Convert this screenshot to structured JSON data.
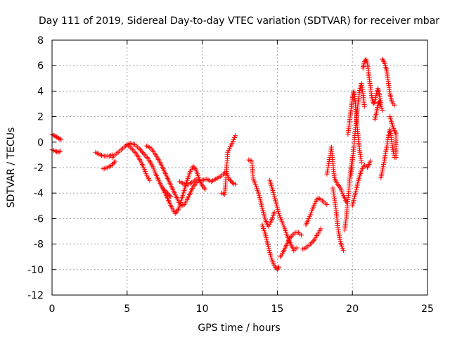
{
  "chart_data": {
    "type": "scatter",
    "title": "Day 111 of 2019, Sidereal Day-to-day VTEC variation (SDTVAR) for receiver mbar",
    "xlabel": "GPS time / hours",
    "ylabel": "SDTVAR / TECUs",
    "xlim": [
      0,
      25
    ],
    "ylim": [
      -12,
      8
    ],
    "xticks": [
      "0",
      "5",
      "10",
      "15",
      "20",
      "25"
    ],
    "yticks": [
      "-12",
      "-10",
      "-8",
      "-6",
      "-4",
      "-2",
      "0",
      "2",
      "4",
      "6",
      "8"
    ],
    "grid": true,
    "marker": "plus",
    "color": "#ff0000",
    "segments": [
      [
        [
          0.0,
          0.6
        ],
        [
          0.15,
          0.5
        ],
        [
          0.3,
          0.4
        ],
        [
          0.45,
          0.3
        ],
        [
          0.6,
          0.2
        ]
      ],
      [
        [
          0.0,
          -0.6
        ],
        [
          0.2,
          -0.7
        ],
        [
          0.4,
          -0.8
        ],
        [
          0.55,
          -0.7
        ]
      ],
      [
        [
          2.9,
          -0.8
        ],
        [
          3.2,
          -1.0
        ],
        [
          3.5,
          -1.1
        ],
        [
          3.8,
          -1.1
        ],
        [
          4.0,
          -1.0
        ]
      ],
      [
        [
          3.4,
          -2.1
        ],
        [
          3.7,
          -2.0
        ],
        [
          4.0,
          -1.8
        ],
        [
          4.2,
          -1.5
        ]
      ],
      [
        [
          4.0,
          -1.2
        ],
        [
          4.3,
          -0.9
        ],
        [
          4.6,
          -0.6
        ],
        [
          4.9,
          -0.3
        ],
        [
          5.2,
          -0.1
        ],
        [
          5.5,
          -0.2
        ],
        [
          5.8,
          -0.5
        ],
        [
          6.1,
          -0.9
        ],
        [
          6.4,
          -1.3
        ],
        [
          6.7,
          -1.9
        ],
        [
          6.9,
          -2.5
        ],
        [
          7.1,
          -3.0
        ],
        [
          7.3,
          -3.5
        ],
        [
          7.5,
          -3.8
        ],
        [
          7.7,
          -4.0
        ],
        [
          7.9,
          -4.3
        ]
      ],
      [
        [
          5.0,
          -0.2
        ],
        [
          5.3,
          -0.5
        ],
        [
          5.6,
          -0.9
        ],
        [
          5.9,
          -1.5
        ],
        [
          6.1,
          -2.0
        ],
        [
          6.3,
          -2.6
        ],
        [
          6.5,
          -3.0
        ]
      ],
      [
        [
          6.3,
          -0.3
        ],
        [
          6.6,
          -0.5
        ],
        [
          6.9,
          -1.0
        ],
        [
          7.2,
          -1.6
        ],
        [
          7.4,
          -2.1
        ],
        [
          7.6,
          -2.6
        ],
        [
          7.8,
          -3.1
        ],
        [
          8.0,
          -3.6
        ],
        [
          8.2,
          -4.1
        ],
        [
          8.4,
          -4.6
        ],
        [
          8.6,
          -5.0
        ],
        [
          8.8,
          -4.9
        ],
        [
          9.0,
          -4.5
        ],
        [
          9.2,
          -4.0
        ],
        [
          9.4,
          -3.5
        ],
        [
          9.6,
          -3.2
        ],
        [
          9.8,
          -3.0
        ]
      ],
      [
        [
          7.4,
          -3.7
        ],
        [
          7.6,
          -4.2
        ],
        [
          7.8,
          -4.7
        ],
        [
          8.0,
          -5.2
        ],
        [
          8.2,
          -5.6
        ],
        [
          8.4,
          -5.3
        ],
        [
          8.6,
          -4.6
        ],
        [
          8.8,
          -3.8
        ],
        [
          9.0,
          -3.0
        ],
        [
          9.2,
          -2.3
        ],
        [
          9.4,
          -1.9
        ],
        [
          9.6,
          -2.2
        ],
        [
          9.8,
          -2.9
        ],
        [
          10.0,
          -3.4
        ],
        [
          10.2,
          -3.7
        ]
      ],
      [
        [
          8.5,
          -3.1
        ],
        [
          8.8,
          -3.3
        ],
        [
          9.1,
          -3.3
        ],
        [
          9.4,
          -3.1
        ],
        [
          9.6,
          -2.9
        ]
      ],
      [
        [
          10.0,
          -3.0
        ],
        [
          10.3,
          -2.9
        ],
        [
          10.6,
          -3.1
        ],
        [
          10.9,
          -2.9
        ],
        [
          11.2,
          -2.7
        ],
        [
          11.4,
          -2.5
        ],
        [
          11.6,
          -2.3
        ],
        [
          11.8,
          -2.9
        ],
        [
          12.0,
          -3.2
        ],
        [
          12.2,
          -3.3
        ]
      ],
      [
        [
          11.3,
          -4.0
        ],
        [
          11.5,
          -4.1
        ],
        [
          11.7,
          -0.8
        ],
        [
          12.1,
          0.2
        ],
        [
          12.2,
          0.5
        ]
      ],
      [
        [
          13.1,
          -1.4
        ],
        [
          13.3,
          -1.5
        ],
        [
          13.4,
          -2.9
        ],
        [
          13.6,
          -3.5
        ],
        [
          13.8,
          -4.2
        ],
        [
          14.0,
          -5.2
        ],
        [
          14.2,
          -6.1
        ],
        [
          14.4,
          -6.6
        ],
        [
          14.6,
          -6.2
        ],
        [
          14.8,
          -5.5
        ]
      ],
      [
        [
          14.0,
          -6.5
        ],
        [
          14.2,
          -7.2
        ],
        [
          14.4,
          -8.2
        ],
        [
          14.6,
          -9.1
        ],
        [
          14.8,
          -9.7
        ],
        [
          15.0,
          -10.0
        ],
        [
          15.1,
          -9.8
        ]
      ],
      [
        [
          14.5,
          -3.0
        ],
        [
          14.7,
          -3.8
        ],
        [
          14.9,
          -4.7
        ],
        [
          15.1,
          -5.6
        ],
        [
          15.3,
          -6.2
        ],
        [
          15.5,
          -6.8
        ],
        [
          15.7,
          -7.5
        ],
        [
          15.9,
          -8.0
        ],
        [
          16.1,
          -8.5
        ],
        [
          16.3,
          -8.3
        ]
      ],
      [
        [
          15.2,
          -9.0
        ],
        [
          15.4,
          -8.6
        ],
        [
          15.6,
          -8.1
        ],
        [
          15.8,
          -7.6
        ],
        [
          16.0,
          -7.3
        ],
        [
          16.2,
          -7.1
        ],
        [
          16.4,
          -7.1
        ],
        [
          16.6,
          -7.3
        ]
      ],
      [
        [
          16.7,
          -8.4
        ],
        [
          16.9,
          -8.3
        ],
        [
          17.1,
          -8.1
        ],
        [
          17.3,
          -7.9
        ],
        [
          17.5,
          -7.6
        ],
        [
          17.7,
          -7.2
        ],
        [
          17.9,
          -6.8
        ]
      ],
      [
        [
          16.9,
          -6.5
        ],
        [
          17.1,
          -6.0
        ],
        [
          17.3,
          -5.4
        ],
        [
          17.5,
          -4.8
        ],
        [
          17.7,
          -4.4
        ],
        [
          17.9,
          -4.5
        ],
        [
          18.1,
          -4.7
        ],
        [
          18.3,
          -4.9
        ]
      ],
      [
        [
          18.3,
          -2.5
        ],
        [
          18.5,
          -1.2
        ],
        [
          18.6,
          -0.4
        ],
        [
          18.8,
          -2.8
        ],
        [
          19.0,
          -3.3
        ],
        [
          19.2,
          -3.6
        ],
        [
          19.4,
          -4.2
        ],
        [
          19.6,
          -4.7
        ]
      ],
      [
        [
          18.7,
          -3.6
        ],
        [
          18.9,
          -5.2
        ],
        [
          19.0,
          -6.4
        ],
        [
          19.1,
          -7.2
        ],
        [
          19.2,
          -7.8
        ],
        [
          19.3,
          -8.2
        ],
        [
          19.4,
          -8.5
        ]
      ],
      [
        [
          19.5,
          -6.9
        ],
        [
          19.6,
          -5.8
        ],
        [
          19.7,
          -4.5
        ],
        [
          19.8,
          -3.2
        ],
        [
          19.9,
          -2.1
        ],
        [
          20.0,
          -1.2
        ]
      ],
      [
        [
          19.7,
          0.6
        ],
        [
          19.8,
          1.5
        ],
        [
          19.9,
          2.5
        ],
        [
          20.0,
          3.5
        ],
        [
          20.1,
          4.0
        ],
        [
          20.2,
          3.0
        ],
        [
          20.3,
          1.5
        ],
        [
          20.4,
          0.2
        ],
        [
          20.5,
          -0.8
        ],
        [
          20.6,
          -1.6
        ]
      ],
      [
        [
          19.9,
          -2.6
        ],
        [
          20.0,
          -1.5
        ],
        [
          20.1,
          -0.3
        ],
        [
          20.2,
          1.0
        ],
        [
          20.3,
          2.2
        ],
        [
          20.4,
          3.3
        ],
        [
          20.5,
          4.2
        ],
        [
          20.6,
          4.6
        ],
        [
          20.7,
          3.8
        ],
        [
          20.8,
          2.8
        ]
      ],
      [
        [
          20.0,
          -5.0
        ],
        [
          20.2,
          -4.0
        ],
        [
          20.4,
          -3.0
        ],
        [
          20.6,
          -2.2
        ],
        [
          20.8,
          -1.8
        ],
        [
          21.0,
          -2.0
        ],
        [
          21.2,
          -1.5
        ]
      ],
      [
        [
          20.7,
          5.8
        ],
        [
          20.8,
          6.3
        ],
        [
          20.9,
          6.5
        ],
        [
          21.0,
          6.2
        ],
        [
          21.1,
          5.2
        ],
        [
          21.2,
          4.3
        ],
        [
          21.3,
          3.5
        ],
        [
          21.4,
          3.0
        ],
        [
          21.5,
          3.2
        ],
        [
          21.6,
          3.8
        ],
        [
          21.7,
          4.2
        ],
        [
          21.8,
          3.7
        ],
        [
          21.9,
          3.1
        ]
      ],
      [
        [
          21.5,
          1.8
        ],
        [
          21.6,
          2.3
        ],
        [
          21.7,
          3.0
        ],
        [
          21.8,
          3.2
        ],
        [
          21.9,
          2.8
        ],
        [
          22.0,
          2.5
        ]
      ],
      [
        [
          21.9,
          -2.8
        ],
        [
          22.0,
          -2.2
        ],
        [
          22.1,
          -1.6
        ],
        [
          22.2,
          -0.9
        ],
        [
          22.3,
          -0.3
        ],
        [
          22.4,
          0.5
        ],
        [
          22.5,
          1.0
        ],
        [
          22.6,
          0.2
        ],
        [
          22.7,
          -0.6
        ],
        [
          22.8,
          -1.2
        ]
      ],
      [
        [
          22.0,
          6.5
        ],
        [
          22.1,
          6.3
        ],
        [
          22.2,
          6.0
        ],
        [
          22.3,
          5.5
        ],
        [
          22.4,
          4.6
        ],
        [
          22.5,
          3.8
        ],
        [
          22.6,
          3.3
        ],
        [
          22.7,
          3.0
        ],
        [
          22.8,
          2.9
        ]
      ],
      [
        [
          22.5,
          2.0
        ],
        [
          22.6,
          1.6
        ],
        [
          22.7,
          1.2
        ],
        [
          22.8,
          0.9
        ],
        [
          22.9,
          0.7
        ],
        [
          22.9,
          -0.2
        ],
        [
          22.9,
          -1.2
        ]
      ]
    ]
  }
}
